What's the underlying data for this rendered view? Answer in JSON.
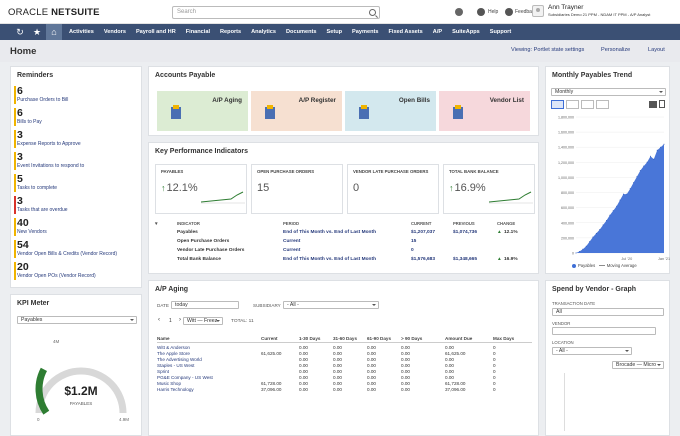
{
  "topbar": {
    "logo_oracle": "ORACLE",
    "logo_netsuite": "NETSUITE",
    "search_placeholder": "Search",
    "help_label": "Help",
    "feedback_label": "Feedback",
    "user_name": "Ann Trayner",
    "user_role": "Subsidiaries Demo 21 PPM - NDAM IT PPM - A/P Analyst"
  },
  "nav": {
    "items": [
      "Activities",
      "Vendors",
      "Payroll and HR",
      "Financial",
      "Reports",
      "Analytics",
      "Documents",
      "Setup",
      "Payments",
      "Fixed Assets",
      "A/P",
      "SuiteApps",
      "Support"
    ]
  },
  "home": {
    "title": "Home",
    "viewing": "Viewing: Portlet state settings",
    "personalize": "Personalize",
    "layout": "Layout"
  },
  "reminders": {
    "title": "Reminders",
    "items": [
      {
        "count": "6",
        "label": "Purchase Orders to Bill",
        "color": "#f0b400"
      },
      {
        "count": "6",
        "label": "Bills to Pay",
        "color": "#f0b400"
      },
      {
        "count": "3",
        "label": "Expense Reports to Approve",
        "color": "#f0b400"
      },
      {
        "count": "3",
        "label": "Event Invitations to respond to",
        "color": "#f0b400"
      },
      {
        "count": "5",
        "label": "Tasks to complete",
        "color": "#f0b400"
      },
      {
        "count": "3",
        "label": "Tasks that are overdue",
        "color": "#d9332b"
      },
      {
        "count": "40",
        "label": "New Vendors",
        "color": "#f0b400"
      },
      {
        "count": "54",
        "label": "Vendor Open Bills & Credits (Vendor Record)",
        "color": "#f0b400"
      },
      {
        "count": "20",
        "label": "Vendor Open POs (Vendor Record)",
        "color": "#f0b400"
      }
    ]
  },
  "kpi_meter": {
    "title": "KPI Meter",
    "select": "Payables",
    "value": "$1.2M",
    "label": "PAYABLES",
    "min": "0",
    "max": "4.9M",
    "mid": "4M",
    "fraction": 0.25
  },
  "accounts_payable": {
    "title": "Accounts Payable",
    "tiles": [
      {
        "label": "A/P Aging",
        "bg": "#dcecd3"
      },
      {
        "label": "A/P Register",
        "bg": "#f6e0d1"
      },
      {
        "label": "Open Bills",
        "bg": "#d3e8ee"
      },
      {
        "label": "Vendor List",
        "bg": "#f6d8dc"
      }
    ]
  },
  "kpi": {
    "title": "Key Performance Indicators",
    "cards": [
      {
        "label": "PAYABLES",
        "value": "12.1%",
        "arrow": "up"
      },
      {
        "label": "OPEN PURCHASE ORDERS",
        "value": "15",
        "arrow": ""
      },
      {
        "label": "VENDOR LATE PURCHASE ORDERS",
        "value": "0",
        "arrow": ""
      },
      {
        "label": "TOTAL BANK BALANCE",
        "value": "16.9%",
        "arrow": "up"
      }
    ],
    "headers": {
      "indicator": "INDICATOR",
      "period": "PERIOD",
      "current": "CURRENT",
      "previous": "PREVIOUS",
      "change": "CHANGE"
    },
    "rows": [
      {
        "indicator": "Payables",
        "period": "End of This Month vs. End of Last Month",
        "current": "$1,207,037",
        "previous": "$1,074,736",
        "change": "12.1%"
      },
      {
        "indicator": "Open Purchase Orders",
        "period": "Current",
        "current": "15",
        "previous": "",
        "change": ""
      },
      {
        "indicator": "Vendor Late Purchase Orders",
        "period": "Current",
        "current": "0",
        "previous": "",
        "change": ""
      },
      {
        "indicator": "Total Bank Balance",
        "period": "End of This Month vs. End of Last Month",
        "current": "$1,576,683",
        "previous": "$1,348,665",
        "change": "16.9%"
      }
    ]
  },
  "ap_aging": {
    "title": "A/P Aging",
    "date_label": "DATE",
    "date_value": "today",
    "subsidiary_label": "SUBSIDIARY",
    "subsidiary_value": "- All -",
    "page": "1",
    "view_select": "Witt — Freez",
    "total": "TOTAL: 11",
    "headers": [
      "Name",
      "Current",
      "1-30 Days",
      "31-60 Days",
      "61-90 Days",
      "> 90 Days",
      "Amount Due",
      "Max Days"
    ],
    "rows": [
      [
        "Witt & Anderson",
        "",
        "0.00",
        "0.00",
        "0.00",
        "0.00",
        "0.00",
        "0"
      ],
      [
        "The Apple Store",
        "61,625.00",
        "0.00",
        "0.00",
        "0.00",
        "0.00",
        "61,625.00",
        "0"
      ],
      [
        "The Advertising World",
        "",
        "0.00",
        "0.00",
        "0.00",
        "0.00",
        "0.00",
        "0"
      ],
      [
        "Staples - US West",
        "",
        "0.00",
        "0.00",
        "0.00",
        "0.00",
        "0.00",
        "0"
      ],
      [
        "Sprint",
        "",
        "0.00",
        "0.00",
        "0.00",
        "0.00",
        "0.00",
        "0"
      ],
      [
        "PG&E Company - US West",
        "",
        "0.00",
        "0.00",
        "0.00",
        "0.00",
        "0.00",
        "0"
      ],
      [
        "Music Shop",
        "61,728.00",
        "0.00",
        "0.00",
        "0.00",
        "0.00",
        "61,728.00",
        "0"
      ],
      [
        "Harris Technology",
        "37,096.00",
        "0.00",
        "0.00",
        "0.00",
        "0.00",
        "37,096.00",
        "0"
      ]
    ]
  },
  "trend": {
    "title": "Monthly Payables Trend",
    "select": "Monthly",
    "legend": [
      "Payables",
      "Moving Average"
    ],
    "x_labels": [
      "Jul '20",
      "Jan '21"
    ],
    "y_labels": [
      "1,800,000",
      "1,600,000",
      "1,400,000",
      "1,200,000",
      "1,000,000",
      "800,000",
      "600,000",
      "400,000",
      "200,000",
      "0"
    ],
    "color": "#3f6fd6"
  },
  "chart_data": {
    "type": "area",
    "title": "Monthly Payables Trend",
    "xlabel": "",
    "ylabel": "",
    "ylim": [
      0,
      1800000
    ],
    "x_ticks": [
      "Jul '20",
      "Jan '21"
    ],
    "series": [
      {
        "name": "Payables",
        "values": [
          0,
          20000,
          50000,
          90000,
          150000,
          210000,
          260000,
          310000,
          370000,
          430000,
          500000,
          560000,
          620000,
          700000,
          780000,
          780000,
          850000,
          930000,
          1010000,
          1090000,
          1150000,
          1200000,
          1280000,
          1240000,
          1360000,
          1400000,
          1440000
        ]
      },
      {
        "name": "Moving Average",
        "values": []
      }
    ]
  },
  "spend": {
    "title": "Spend by Vendor - Graph",
    "transaction_date_label": "TRANSACTION DATE",
    "transaction_date_value": "All",
    "vendor_label": "VENDOR",
    "location_label": "LOCATION",
    "location_value": "- All -",
    "view_select": "Brocade — Micro"
  }
}
